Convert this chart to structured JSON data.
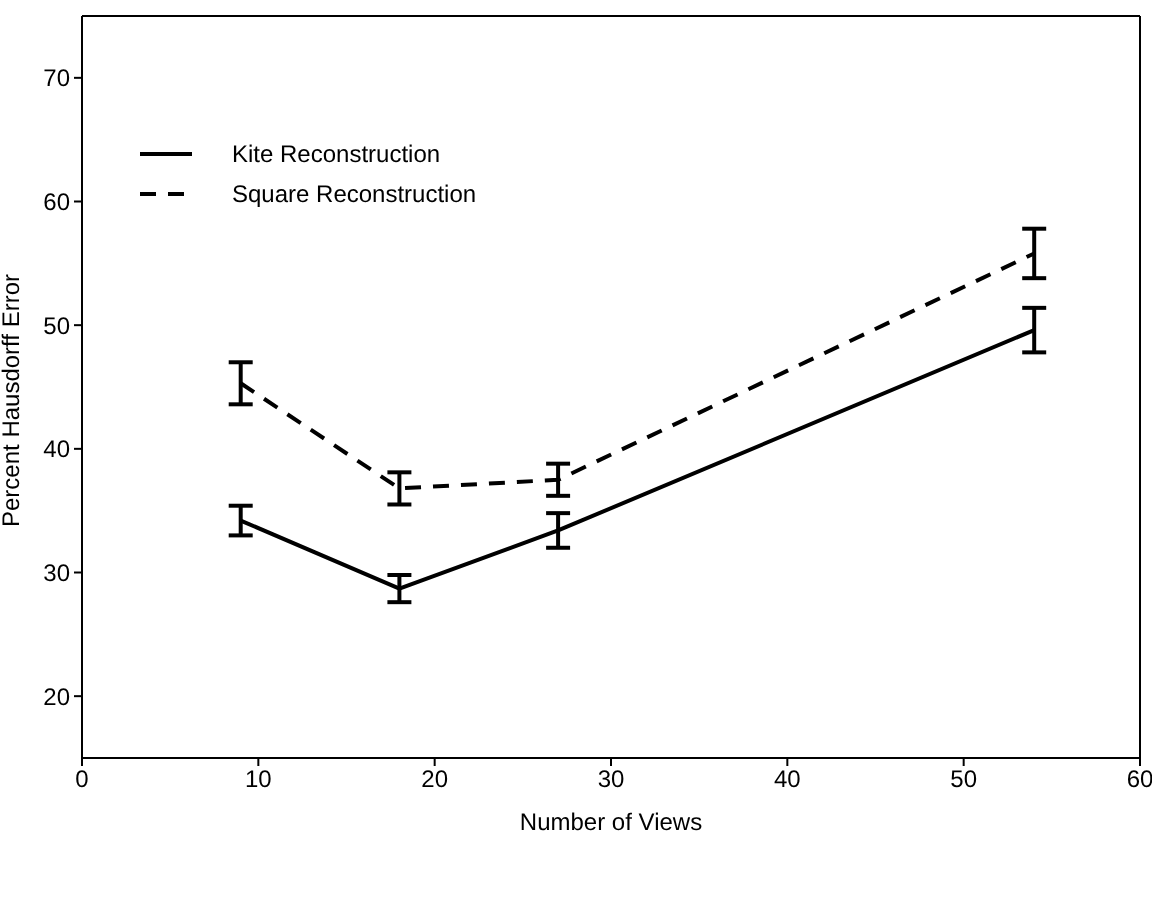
{
  "chart_data": {
    "type": "line",
    "xlabel": "Number of Views",
    "ylabel": "Percent Hausdorff Error",
    "x": [
      9,
      18,
      27,
      54
    ],
    "series": [
      {
        "name": "Kite Reconstruction",
        "color": "#000000",
        "line_style": "solid",
        "values": [
          34.2,
          28.7,
          33.4,
          49.6
        ],
        "errors": [
          1.2,
          1.1,
          1.4,
          1.8
        ]
      },
      {
        "name": "Square Reconstruction",
        "color": "#000000",
        "line_style": "dashed",
        "values": [
          45.3,
          36.8,
          37.5,
          55.8
        ],
        "errors": [
          1.7,
          1.3,
          1.3,
          2.0
        ]
      }
    ],
    "xlim": [
      0,
      60
    ],
    "xticks": [
      0,
      10,
      20,
      30,
      40,
      50,
      60
    ],
    "ylim": [
      15,
      75
    ],
    "yticks": [
      20,
      30,
      40,
      50,
      60,
      70
    ],
    "grid": false,
    "legend": "top left",
    "marker": "none"
  }
}
